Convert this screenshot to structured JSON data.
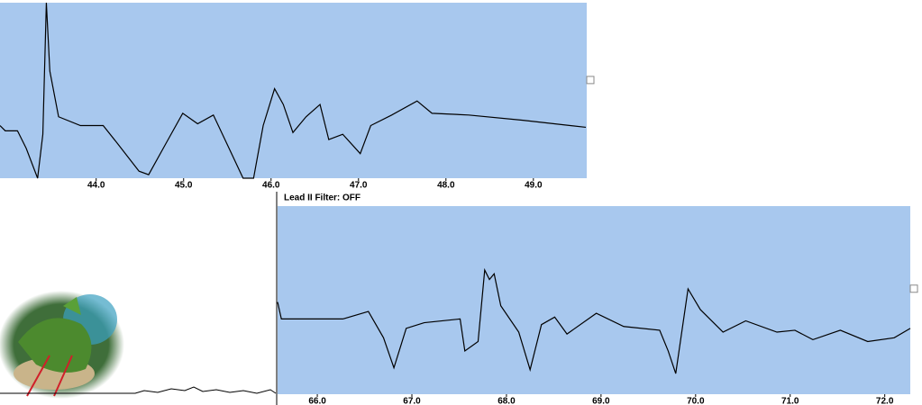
{
  "chart_data": [
    {
      "type": "line",
      "color": "#000000",
      "background": "#a8c8ee",
      "xlim": [
        42.9,
        49.61
      ],
      "ylim": [
        0,
        100
      ],
      "xticks": [
        {
          "value": 44,
          "label": "44.0"
        },
        {
          "value": 45,
          "label": "45.0"
        },
        {
          "value": 46,
          "label": "46.0"
        },
        {
          "value": 47,
          "label": "47.0"
        },
        {
          "value": 48,
          "label": "48.0"
        },
        {
          "value": 49,
          "label": "49.0"
        }
      ],
      "x": [
        42.9,
        42.96,
        43.1,
        43.2,
        43.33,
        43.39,
        43.43,
        43.47,
        43.57,
        43.82,
        44.08,
        44.24,
        44.49,
        44.6,
        44.8,
        44.99,
        45.16,
        45.34,
        45.52,
        45.68,
        45.8,
        45.91,
        46.04,
        46.14,
        46.25,
        46.4,
        46.56,
        46.66,
        46.82,
        47.02,
        47.14,
        47.38,
        47.67,
        47.84,
        48.26,
        48.88,
        49.6
      ],
      "values": [
        30,
        27,
        27,
        17,
        0,
        25,
        100,
        61,
        35,
        30,
        30,
        20,
        4,
        2,
        20,
        37,
        31,
        36,
        17,
        0,
        0,
        30,
        51,
        42,
        26,
        35,
        42,
        22,
        25,
        14,
        30,
        36,
        44,
        37,
        36,
        33,
        29
      ]
    },
    {
      "type": "line",
      "title": "Lead II  Filter: OFF",
      "color": "#000000",
      "background": "#a8c8ee",
      "xlim": [
        65.58,
        72.27
      ],
      "ylim": [
        0,
        100
      ],
      "xticks": [
        {
          "value": 66,
          "label": "66.0"
        },
        {
          "value": 67,
          "label": "67.0"
        },
        {
          "value": 68,
          "label": "68.0"
        },
        {
          "value": 69,
          "label": "69.0"
        },
        {
          "value": 70,
          "label": "70.0"
        },
        {
          "value": 71,
          "label": "71.0"
        },
        {
          "value": 72,
          "label": "72.0"
        }
      ],
      "x": [
        65.58,
        65.62,
        66.27,
        66.54,
        66.7,
        66.81,
        66.94,
        67.13,
        67.51,
        67.56,
        67.7,
        67.77,
        67.82,
        67.87,
        67.94,
        68.13,
        68.25,
        68.37,
        68.51,
        68.64,
        68.95,
        69.24,
        69.62,
        69.71,
        69.79,
        69.92,
        70.05,
        70.29,
        70.53,
        70.86,
        71.05,
        71.24,
        71.53,
        71.82,
        72.1,
        72.27
      ],
      "values": [
        49,
        40,
        40,
        44,
        30,
        14,
        35,
        38,
        40,
        23,
        28,
        66,
        61,
        64,
        47,
        33,
        13,
        37,
        41,
        32,
        43,
        36,
        34,
        23,
        11,
        56,
        45,
        33,
        39,
        33,
        34,
        29,
        34,
        28,
        30,
        35
      ]
    }
  ]
}
